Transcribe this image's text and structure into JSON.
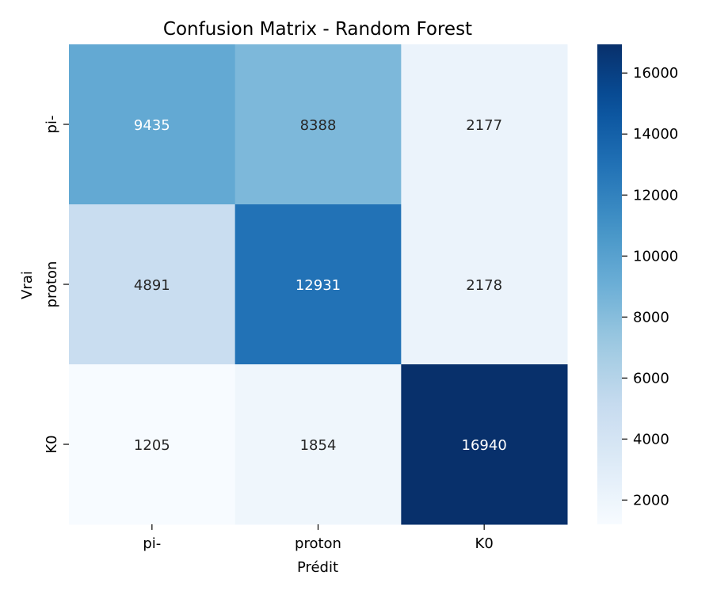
{
  "chart_data": {
    "type": "heatmap",
    "title": "Confusion Matrix - Random Forest",
    "xlabel": "Prédit",
    "ylabel": "Vrai",
    "x_categories": [
      "pi-",
      "proton",
      "K0"
    ],
    "y_categories": [
      "pi-",
      "proton",
      "K0"
    ],
    "values": [
      [
        9435,
        8388,
        2177
      ],
      [
        4891,
        12931,
        2178
      ],
      [
        1205,
        1854,
        16940
      ]
    ],
    "colorbar": {
      "min": 1205,
      "max": 16940,
      "ticks": [
        2000,
        4000,
        6000,
        8000,
        10000,
        12000,
        14000,
        16000
      ]
    },
    "colormap": "Blues",
    "colors": {
      "light_text": "#ffffff",
      "dark_text": "#262626",
      "axis": "#000000"
    }
  }
}
